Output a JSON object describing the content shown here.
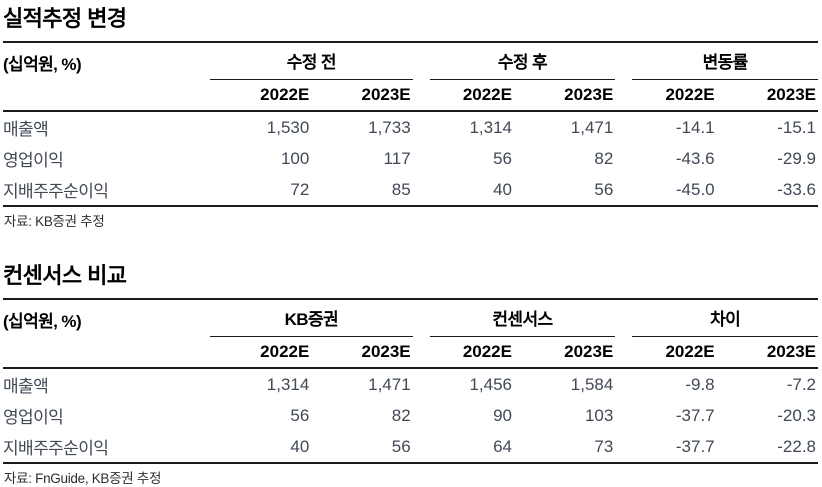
{
  "tables": [
    {
      "title": "실적추정 변경",
      "unit_label": "(십억원, %)",
      "column_groups": [
        "수정 전",
        "수정 후",
        "변동률"
      ],
      "sub_headers": [
        "2022E",
        "2023E",
        "2022E",
        "2023E",
        "2022E",
        "2023E"
      ],
      "rows": [
        {
          "label": "매출액",
          "values": [
            "1,530",
            "1,733",
            "1,314",
            "1,471",
            "-14.1",
            "-15.1"
          ]
        },
        {
          "label": "영업이익",
          "values": [
            "100",
            "117",
            "56",
            "82",
            "-43.6",
            "-29.9"
          ]
        },
        {
          "label": "지배주주순이익",
          "values": [
            "72",
            "85",
            "40",
            "56",
            "-45.0",
            "-33.6"
          ]
        }
      ],
      "source": "자료: KB증권 추정"
    },
    {
      "title": "컨센서스 비교",
      "unit_label": "(십억원, %)",
      "column_groups": [
        "KB증권",
        "컨센서스",
        "차이"
      ],
      "sub_headers": [
        "2022E",
        "2023E",
        "2022E",
        "2023E",
        "2022E",
        "2023E"
      ],
      "rows": [
        {
          "label": "매출액",
          "values": [
            "1,314",
            "1,471",
            "1,456",
            "1,584",
            "-9.8",
            "-7.2"
          ]
        },
        {
          "label": "영업이익",
          "values": [
            "56",
            "82",
            "90",
            "103",
            "-37.7",
            "-20.3"
          ]
        },
        {
          "label": "지배주주순이익",
          "values": [
            "40",
            "56",
            "64",
            "73",
            "-37.7",
            "-22.8"
          ]
        }
      ],
      "source": "자료: FnGuide, KB증권 추정"
    }
  ]
}
